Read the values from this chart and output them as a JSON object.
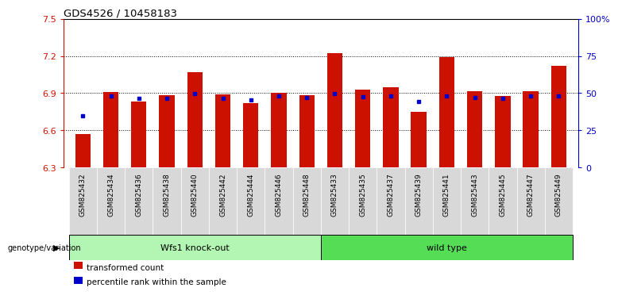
{
  "title": "GDS4526 / 10458183",
  "samples": [
    "GSM825432",
    "GSM825434",
    "GSM825436",
    "GSM825438",
    "GSM825440",
    "GSM825442",
    "GSM825444",
    "GSM825446",
    "GSM825448",
    "GSM825433",
    "GSM825435",
    "GSM825437",
    "GSM825439",
    "GSM825441",
    "GSM825443",
    "GSM825445",
    "GSM825447",
    "GSM825449"
  ],
  "transformed_count": [
    6.57,
    6.91,
    6.83,
    6.885,
    7.07,
    6.89,
    6.82,
    6.905,
    6.885,
    7.22,
    6.93,
    6.95,
    6.75,
    7.19,
    6.915,
    6.875,
    6.915,
    7.12
  ],
  "percentile_rank_left": [
    6.72,
    6.875,
    6.855,
    6.86,
    6.895,
    6.86,
    6.845,
    6.875,
    6.865,
    6.895,
    6.87,
    6.875,
    6.835,
    6.875,
    6.865,
    6.855,
    6.875,
    6.875
  ],
  "groups": [
    {
      "label": "Wfs1 knock-out",
      "start": 0,
      "end": 9
    },
    {
      "label": "wild type",
      "start": 9,
      "end": 18
    }
  ],
  "group_colors": [
    "#b3f5b3",
    "#55dd55"
  ],
  "ylim_left": [
    6.3,
    7.5
  ],
  "ylim_right": [
    0,
    100
  ],
  "yticks_left": [
    6.3,
    6.6,
    6.9,
    7.2,
    7.5
  ],
  "yticks_right": [
    0,
    25,
    50,
    75,
    100
  ],
  "ytick_labels_right": [
    "0",
    "25",
    "50",
    "75",
    "100%"
  ],
  "bar_color": "#cc1100",
  "percentile_color": "#0000cc",
  "bar_width": 0.55,
  "base_value": 6.3,
  "label_color_left": "#cc1100",
  "label_color_right": "#0000cc",
  "genotype_label": "genotype/variation",
  "cell_bg": "#d8d8d8",
  "legend_items": [
    {
      "color": "#cc1100",
      "label": "transformed count"
    },
    {
      "color": "#0000cc",
      "label": "percentile rank within the sample"
    }
  ],
  "grid_yticks": [
    6.6,
    6.9,
    7.2
  ]
}
